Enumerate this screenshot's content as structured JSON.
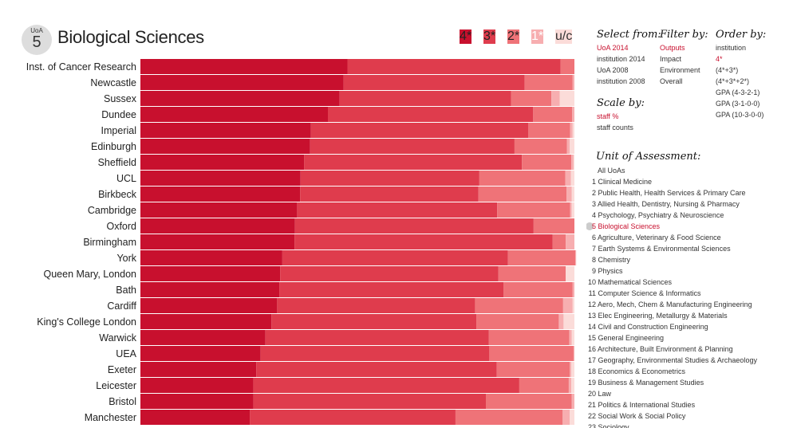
{
  "header": {
    "uoa_small": "UoA",
    "uoa_number": "5",
    "title": "Biological Sciences"
  },
  "legend": [
    {
      "label": "4*",
      "color": "#c8102e"
    },
    {
      "label": "3*",
      "color": "#df3c4d"
    },
    {
      "label": "2*",
      "color": "#ef7378"
    },
    {
      "label": "1*",
      "color": "#f7aeb0"
    },
    {
      "label": "u/c",
      "color": "#fbdcd9"
    }
  ],
  "select_from": {
    "heading": "Select from:",
    "options": [
      "UoA 2014",
      "institution 2014",
      "UoA 2008",
      "institution 2008"
    ],
    "selected": 0
  },
  "filter_by": {
    "heading": "Filter by:",
    "options": [
      "Outputs",
      "Impact",
      "Environment",
      "Overall"
    ],
    "selected": 0
  },
  "order_by": {
    "heading": "Order by:",
    "options": [
      "institution",
      "4*",
      "(4*+3*)",
      "(4*+3*+2*)",
      "GPA (4-3-2-1)",
      "GPA (3-1-0-0)",
      "GPA (10-3-0-0)"
    ],
    "selected": 1
  },
  "scale_by": {
    "heading": "Scale by:",
    "options": [
      "staff %",
      "staff counts"
    ],
    "selected": 0
  },
  "uoa_panel": {
    "heading": "Unit of Assessment:",
    "selected": 5,
    "items": [
      {
        "n": "",
        "label": "All UoAs"
      },
      {
        "n": "1",
        "label": "Clinical Medicine"
      },
      {
        "n": "2",
        "label": "Public Health, Health Services & Primary Care"
      },
      {
        "n": "3",
        "label": "Allied Health, Dentistry, Nursing & Pharmacy"
      },
      {
        "n": "4",
        "label": "Psychology, Psychiatry & Neuroscience"
      },
      {
        "n": "5",
        "label": "Biological Sciences"
      },
      {
        "n": "6",
        "label": "Agriculture, Veterinary & Food Science"
      },
      {
        "n": "7",
        "label": "Earth Systems & Environmental Sciences"
      },
      {
        "n": "8",
        "label": "Chemistry"
      },
      {
        "n": "9",
        "label": "Physics"
      },
      {
        "n": "10",
        "label": "Mathematical Sciences"
      },
      {
        "n": "11",
        "label": "Computer Science & Informatics"
      },
      {
        "n": "12",
        "label": "Aero, Mech, Chem & Manufacturing Engineering"
      },
      {
        "n": "13",
        "label": "Elec Engineering, Metallurgy & Materials"
      },
      {
        "n": "14",
        "label": "Civil and Construction Engineering"
      },
      {
        "n": "15",
        "label": "General Engineering"
      },
      {
        "n": "16",
        "label": "Architecture, Built Environment & Planning"
      },
      {
        "n": "17",
        "label": "Geography, Environmental Studies & Archaeology"
      },
      {
        "n": "18",
        "label": "Economics & Econometrics"
      },
      {
        "n": "19",
        "label": "Business & Management Studies"
      },
      {
        "n": "20",
        "label": "Law"
      },
      {
        "n": "21",
        "label": "Politics & International Studies"
      },
      {
        "n": "22",
        "label": "Social Work & Social Policy"
      },
      {
        "n": "23",
        "label": "Sociology"
      }
    ]
  },
  "chart_data": {
    "type": "bar",
    "orientation": "horizontal",
    "stacked": true,
    "xlim": [
      0,
      100
    ],
    "categories": [
      "Inst. of Cancer Research",
      "Newcastle",
      "Sussex",
      "Dundee",
      "Imperial",
      "Edinburgh",
      "Sheffield",
      "UCL",
      "Birkbeck",
      "Cambridge",
      "Oxford",
      "Birmingham",
      "York",
      "Queen Mary, London",
      "Bath",
      "Cardiff",
      "King's College London",
      "Warwick",
      "UEA",
      "Exeter",
      "Leicester",
      "Bristol",
      "Manchester"
    ],
    "series": [
      {
        "name": "4*",
        "color": "#c8102e",
        "values": [
          47.7,
          46.8,
          45.9,
          43.2,
          39.3,
          39.1,
          37.7,
          36.9,
          36.8,
          36.1,
          35.6,
          35.5,
          32.7,
          32.2,
          32.0,
          31.5,
          30.2,
          28.8,
          27.7,
          26.7,
          26.0,
          26.0,
          25.2
        ]
      },
      {
        "name": "3*",
        "color": "#df3c4d",
        "values": [
          49.1,
          41.7,
          39.5,
          47.3,
          50.1,
          47.1,
          50.2,
          41.2,
          41.1,
          46.1,
          55.0,
          59.5,
          52.0,
          50.3,
          51.7,
          45.6,
          47.2,
          51.5,
          52.7,
          55.4,
          61.3,
          53.6,
          47.4
        ]
      },
      {
        "name": "2*",
        "color": "#ef7378",
        "values": [
          3.2,
          11.1,
          9.3,
          9.0,
          9.6,
          12.1,
          11.4,
          19.8,
          20.3,
          16.8,
          9.4,
          3.0,
          15.5,
          15.5,
          15.9,
          20.3,
          19.0,
          18.5,
          19.4,
          16.8,
          11.4,
          19.8,
          24.7
        ]
      },
      {
        "name": "1*",
        "color": "#f7aeb0",
        "values": [
          0.0,
          0.4,
          1.9,
          0.5,
          0.6,
          0.6,
          0.5,
          1.3,
          1.2,
          0.4,
          0.0,
          2.0,
          0.2,
          0.0,
          0.4,
          2.2,
          1.1,
          0.6,
          0.2,
          0.4,
          0.6,
          0.6,
          1.6
        ]
      },
      {
        "name": "u/c",
        "color": "#fbdcd9",
        "values": [
          0.0,
          0.0,
          3.4,
          0.0,
          0.4,
          1.1,
          0.2,
          0.8,
          0.6,
          0.6,
          0.0,
          0.0,
          0.0,
          2.0,
          0.0,
          0.4,
          2.5,
          0.6,
          0.0,
          0.7,
          0.7,
          0.0,
          1.1
        ]
      }
    ]
  }
}
